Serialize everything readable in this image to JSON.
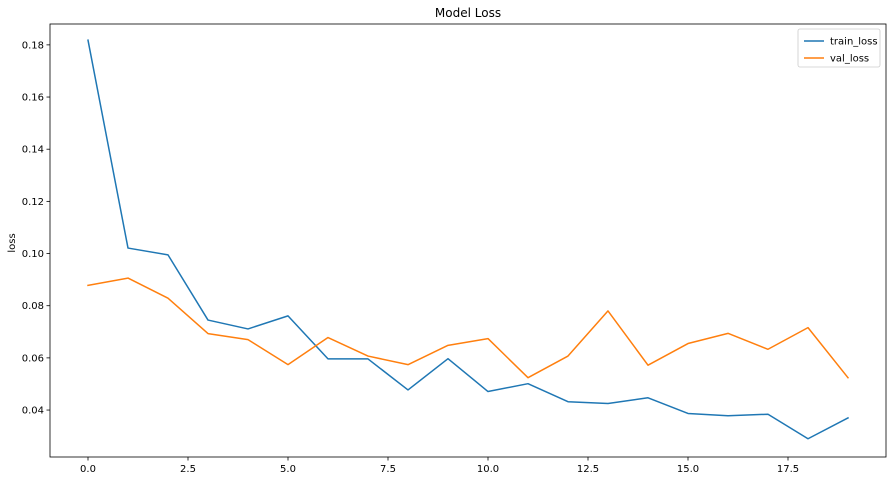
{
  "chart_data": {
    "type": "line",
    "title": "Model Loss",
    "xlabel": "",
    "ylabel": "loss",
    "xlim": [
      -0.95,
      19.95
    ],
    "ylim": [
      0.022,
      0.188
    ],
    "xticks": [
      0.0,
      2.5,
      5.0,
      7.5,
      10.0,
      12.5,
      15.0,
      17.5
    ],
    "xtick_labels": [
      "0.0",
      "2.5",
      "5.0",
      "7.5",
      "10.0",
      "12.5",
      "15.0",
      "17.5"
    ],
    "yticks": [
      0.04,
      0.06,
      0.08,
      0.1,
      0.12,
      0.14,
      0.16,
      0.18
    ],
    "ytick_labels": [
      "0.04",
      "0.06",
      "0.08",
      "0.10",
      "0.12",
      "0.14",
      "0.16",
      "0.18"
    ],
    "grid": false,
    "legend_position": "top-right",
    "x": [
      0,
      1,
      2,
      3,
      4,
      5,
      6,
      7,
      8,
      9,
      10,
      11,
      12,
      13,
      14,
      15,
      16,
      17,
      18,
      19
    ],
    "series": [
      {
        "name": "train_loss",
        "color": "#1f77b4",
        "values": [
          0.1818,
          0.1021,
          0.0995,
          0.0745,
          0.0711,
          0.0761,
          0.0596,
          0.0596,
          0.0477,
          0.0597,
          0.0471,
          0.0501,
          0.0432,
          0.0425,
          0.0447,
          0.0387,
          0.0378,
          0.0384,
          0.029,
          0.037
        ]
      },
      {
        "name": "val_loss",
        "color": "#ff7f0e",
        "values": [
          0.0878,
          0.0906,
          0.0829,
          0.0693,
          0.067,
          0.0574,
          0.0678,
          0.0607,
          0.0574,
          0.0648,
          0.0674,
          0.0524,
          0.0607,
          0.078,
          0.0572,
          0.0655,
          0.0694,
          0.0633,
          0.0716,
          0.0524
        ]
      }
    ]
  }
}
